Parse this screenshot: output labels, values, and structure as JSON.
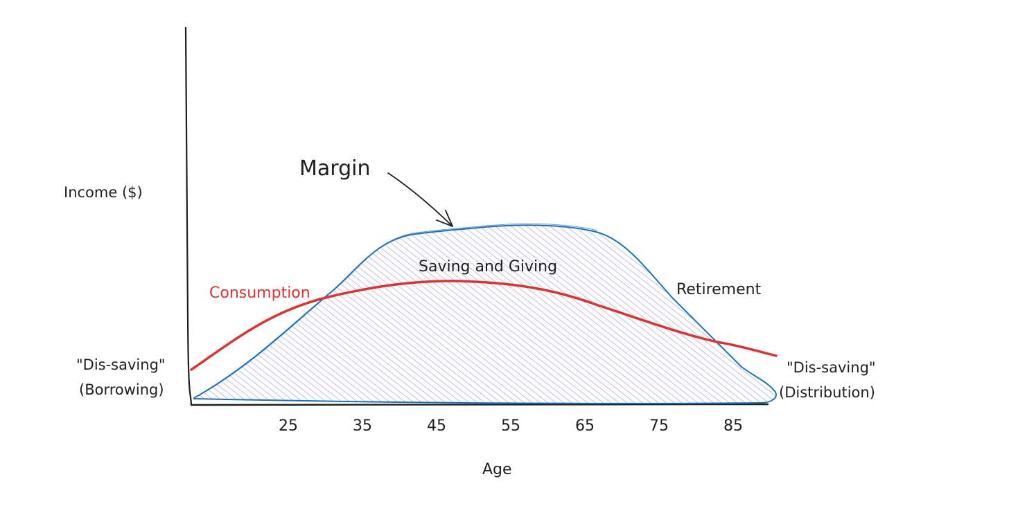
{
  "axes": {
    "y_label": "Income ($)",
    "x_label": "Age",
    "x_ticks": [
      "25",
      "35",
      "45",
      "55",
      "65",
      "75",
      "85"
    ]
  },
  "labels": {
    "callout": "Margin",
    "region": "Saving and Giving",
    "consumption": "Consumption",
    "retirement": "Retirement",
    "left_line1": "\"Dis-saving\"",
    "left_line2": "(Borrowing)",
    "right_line1": "\"Dis-saving\"",
    "right_line2": "(Distribution)"
  },
  "colors": {
    "axis": "#1e1e1e",
    "income_stroke": "#1971c2",
    "hatch": "#9c9cd8",
    "consumption": "#e03131",
    "text": "#1e1e1e"
  }
}
